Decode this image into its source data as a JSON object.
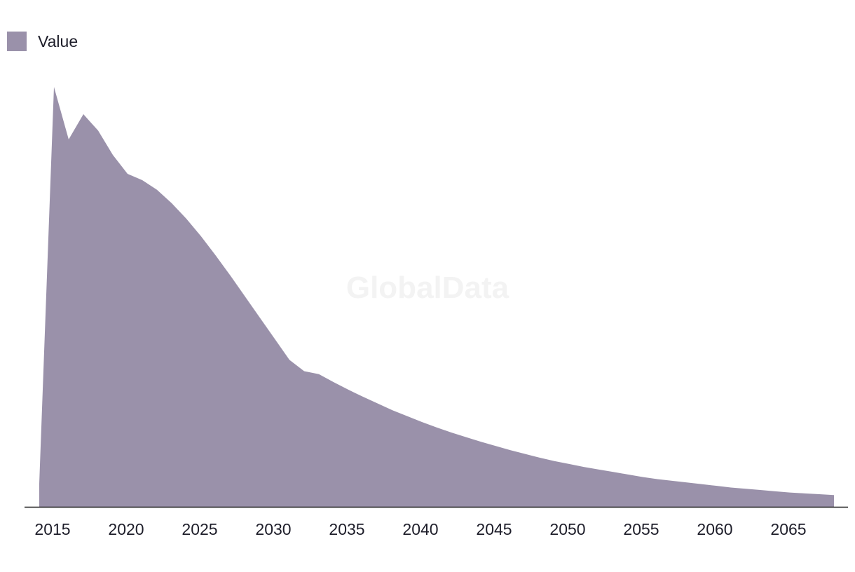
{
  "legend": {
    "label": "Value",
    "color": "#9a91aa"
  },
  "watermark": "GlobalData",
  "colors": {
    "area": "#9a91aa",
    "axis": "#1a1a1a",
    "text": "#1e1e2a"
  },
  "chart_data": {
    "type": "area",
    "title": "",
    "xlabel": "",
    "ylabel": "",
    "xlim": [
      2013.5,
      2068
    ],
    "ylim": [
      0,
      100
    ],
    "grid": false,
    "legend_position": "top-left",
    "x_ticks": [
      2015,
      2020,
      2025,
      2030,
      2035,
      2040,
      2045,
      2050,
      2055,
      2060,
      2065
    ],
    "series": [
      {
        "name": "Value",
        "x": [
          2014,
          2015,
          2016,
          2017,
          2018,
          2019,
          2020,
          2021,
          2022,
          2023,
          2024,
          2025,
          2026,
          2027,
          2028,
          2029,
          2030,
          2031,
          2032,
          2033,
          2034,
          2035,
          2036,
          2037,
          2038,
          2039,
          2040,
          2041,
          2042,
          2043,
          2044,
          2045,
          2046,
          2047,
          2048,
          2049,
          2050,
          2051,
          2052,
          2053,
          2054,
          2055,
          2056,
          2057,
          2058,
          2059,
          2060,
          2061,
          2062,
          2063,
          2064,
          2065,
          2066,
          2067,
          2068
        ],
        "values": [
          5.5,
          100,
          87.5,
          93.5,
          89.6,
          83.8,
          79.3,
          77.8,
          75.5,
          72.3,
          68.6,
          64.4,
          59.8,
          55.0,
          50.0,
          45.0,
          40.0,
          35.0,
          32.3,
          31.6,
          29.7,
          27.9,
          26.2,
          24.6,
          23.0,
          21.6,
          20.2,
          18.9,
          17.7,
          16.6,
          15.5,
          14.5,
          13.5,
          12.6,
          11.7,
          10.9,
          10.2,
          9.5,
          8.9,
          8.3,
          7.7,
          7.1,
          6.6,
          6.2,
          5.8,
          5.4,
          5.0,
          4.6,
          4.3,
          4.0,
          3.7,
          3.4,
          3.2,
          3.0,
          2.8
        ]
      }
    ]
  }
}
